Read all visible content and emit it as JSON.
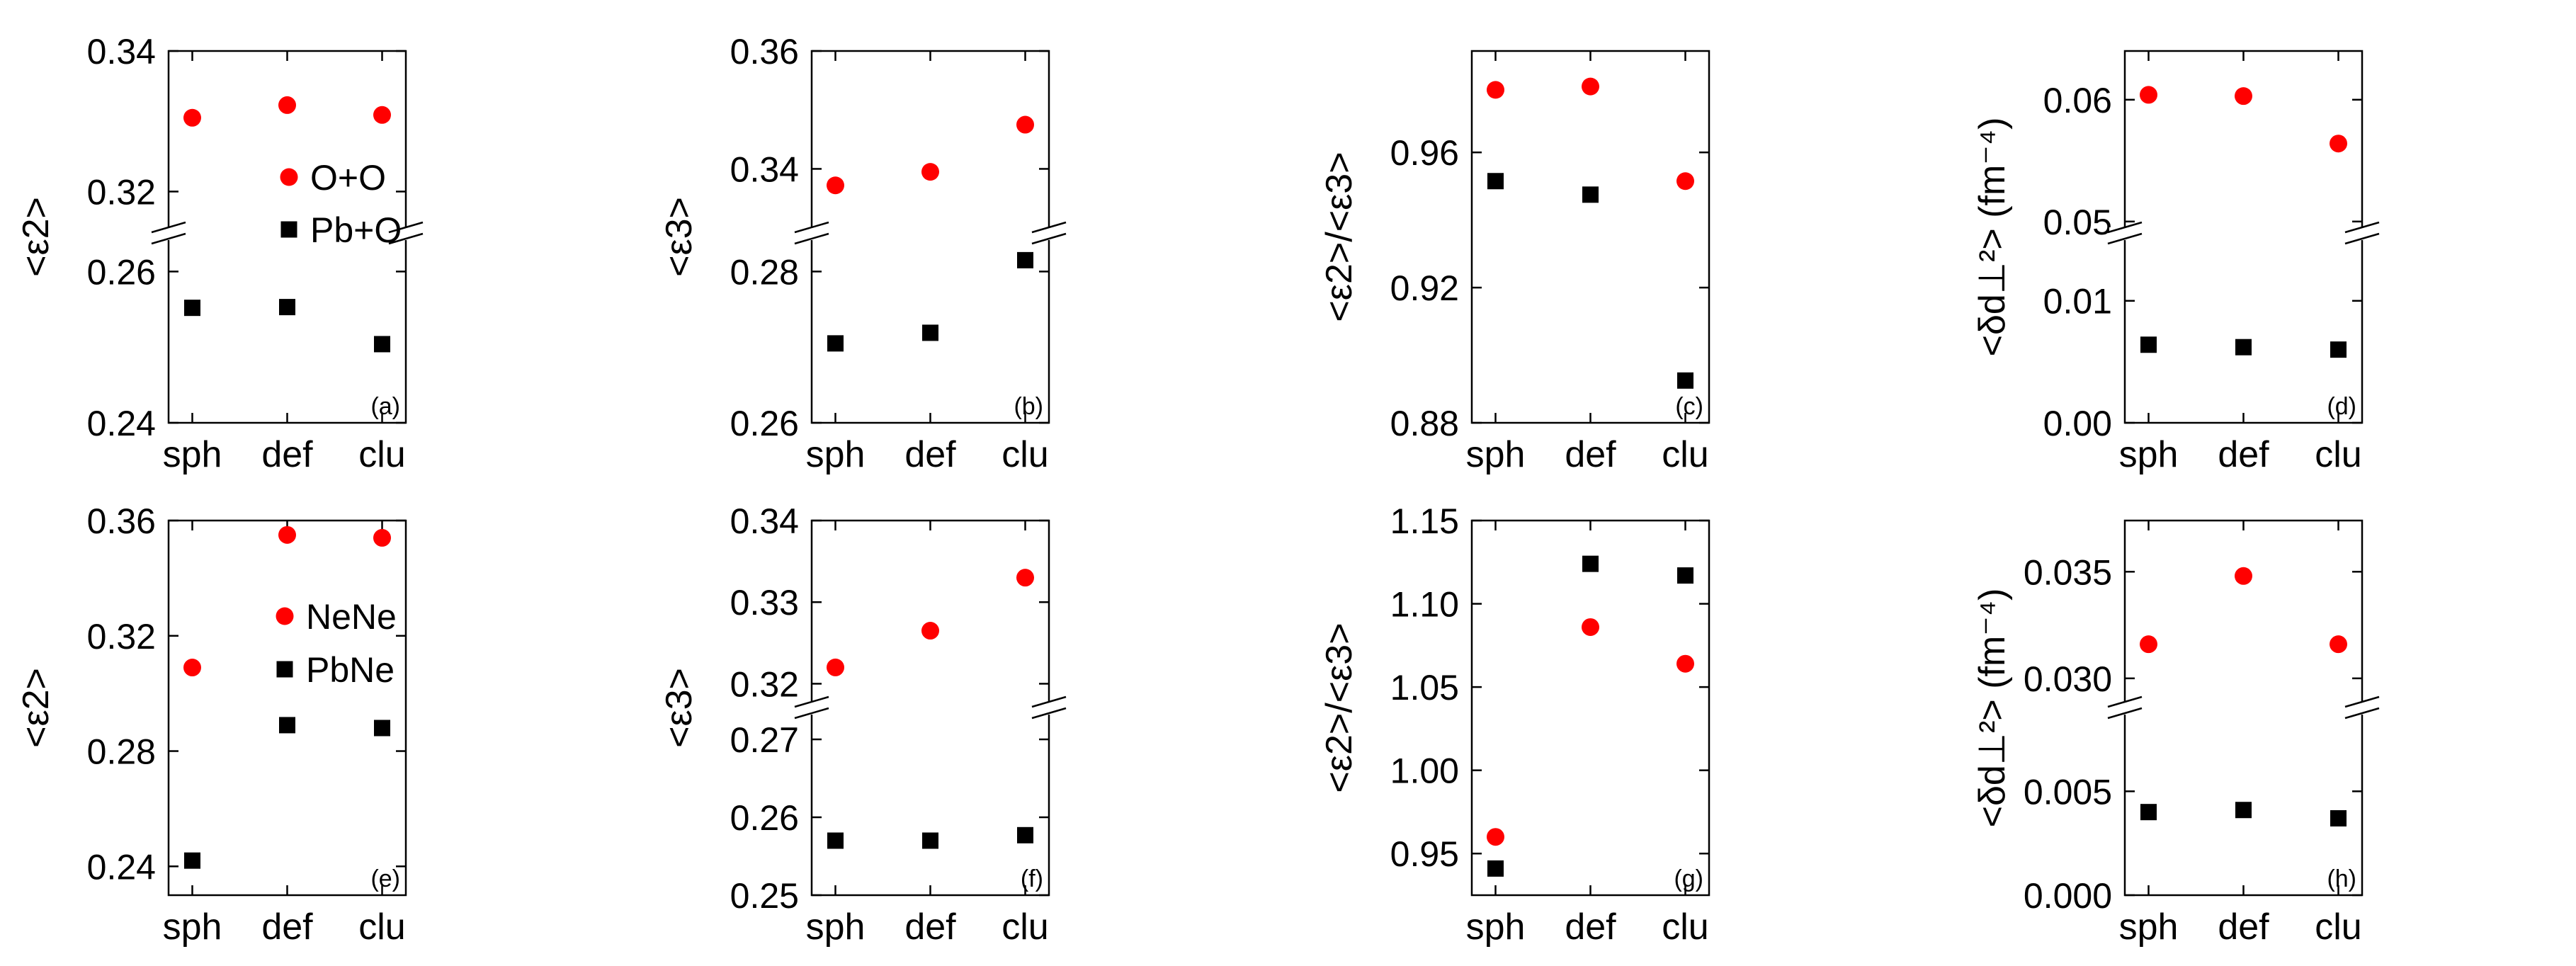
{
  "chart_data": [
    {
      "type": "scatter",
      "broken_axis": true,
      "panel_label": "(a)",
      "ylabel": "<ε2>",
      "categories": [
        "sph",
        "def",
        "clu"
      ],
      "lower_ylim": [
        0.24,
        0.265
      ],
      "upper_ylim": [
        0.314,
        0.34
      ],
      "lower_ticks": [
        "0.24",
        "0.26"
      ],
      "upper_ticks": [
        "0.32",
        "0.34"
      ],
      "legend": {
        "placement": "middle",
        "entries": [
          "O+O",
          "Pb+O"
        ]
      },
      "series": [
        {
          "name": "O+O",
          "marker": "circle",
          "color": "#ff0000",
          "values": [
            0.3305,
            0.3323,
            0.3309
          ]
        },
        {
          "name": "Pb+O",
          "marker": "square",
          "color": "#000000",
          "values": [
            0.2552,
            0.2553,
            0.2504
          ]
        }
      ]
    },
    {
      "type": "scatter",
      "broken_axis": true,
      "panel_label": "(b)",
      "ylabel": "<ε3>",
      "categories": [
        "sph",
        "def",
        "clu"
      ],
      "lower_ylim": [
        0.26,
        0.285
      ],
      "upper_ylim": [
        0.329,
        0.36
      ],
      "lower_ticks": [
        "0.26",
        "0.28"
      ],
      "upper_ticks": [
        "0.34",
        "0.36"
      ],
      "series": [
        {
          "name": "O+O",
          "marker": "circle",
          "color": "#ff0000",
          "values": [
            0.3372,
            0.3395,
            0.3475
          ]
        },
        {
          "name": "Pb+O",
          "marker": "square",
          "color": "#000000",
          "values": [
            0.2705,
            0.2719,
            0.2815
          ]
        }
      ]
    },
    {
      "type": "scatter",
      "broken_axis": false,
      "panel_label": "(c)",
      "ylabel": "<ε2>/<ε3>",
      "categories": [
        "sph",
        "def",
        "clu"
      ],
      "ylim": [
        0.88,
        0.99
      ],
      "ticks": [
        "0.88",
        "0.92",
        "0.96"
      ],
      "series": [
        {
          "name": "O+O",
          "marker": "circle",
          "color": "#ff0000",
          "values": [
            0.9785,
            0.9795,
            0.9515
          ]
        },
        {
          "name": "Pb+O",
          "marker": "square",
          "color": "#000000",
          "values": [
            0.9515,
            0.9475,
            0.8925
          ]
        }
      ]
    },
    {
      "type": "scatter",
      "broken_axis": true,
      "panel_label": "(d)",
      "ylabel": "<δd⊥²> (fm⁻⁴)",
      "categories": [
        "sph",
        "def",
        "clu"
      ],
      "lower_ylim": [
        0.0,
        0.0155
      ],
      "upper_ylim": [
        0.049,
        0.064
      ],
      "lower_ticks": [
        "0.00",
        "0.01"
      ],
      "upper_ticks": [
        "0.05",
        "0.06"
      ],
      "series": [
        {
          "name": "O+O",
          "marker": "circle",
          "color": "#ff0000",
          "values": [
            0.0604,
            0.0603,
            0.0564
          ]
        },
        {
          "name": "Pb+O",
          "marker": "square",
          "color": "#000000",
          "values": [
            0.0064,
            0.0062,
            0.006
          ]
        }
      ]
    },
    {
      "type": "scatter",
      "broken_axis": false,
      "panel_label": "(e)",
      "ylabel": "<ε2>",
      "categories": [
        "sph",
        "def",
        "clu"
      ],
      "ylim": [
        0.23,
        0.36
      ],
      "ticks": [
        "0.24",
        "0.28",
        "0.32",
        "0.36"
      ],
      "legend": {
        "placement": "top-left",
        "entries": [
          "NeNe",
          "PbNe"
        ]
      },
      "series": [
        {
          "name": "NeNe",
          "marker": "circle",
          "color": "#ff0000",
          "values": [
            0.309,
            0.355,
            0.354
          ]
        },
        {
          "name": "PbNe",
          "marker": "square",
          "color": "#000000",
          "values": [
            0.242,
            0.289,
            0.288
          ]
        }
      ]
    },
    {
      "type": "scatter",
      "broken_axis": true,
      "panel_label": "(f)",
      "ylabel": "<ε3>",
      "categories": [
        "sph",
        "def",
        "clu"
      ],
      "lower_ylim": [
        0.25,
        0.274
      ],
      "upper_ylim": [
        0.317,
        0.34
      ],
      "lower_ticks": [
        "0.25",
        "0.26",
        "0.27"
      ],
      "upper_ticks": [
        "0.32",
        "0.33",
        "0.34"
      ],
      "series": [
        {
          "name": "NeNe",
          "marker": "circle",
          "color": "#ff0000",
          "values": [
            0.322,
            0.3265,
            0.333
          ]
        },
        {
          "name": "PbNe",
          "marker": "square",
          "color": "#000000",
          "values": [
            0.257,
            0.257,
            0.2577
          ]
        }
      ]
    },
    {
      "type": "scatter",
      "broken_axis": false,
      "panel_label": "(g)",
      "ylabel": "<ε2>/<ε3>",
      "categories": [
        "sph",
        "def",
        "clu"
      ],
      "ylim": [
        0.925,
        1.15
      ],
      "ticks": [
        "0.95",
        "1.00",
        "1.05",
        "1.10",
        "1.15"
      ],
      "series": [
        {
          "name": "NeNe",
          "marker": "circle",
          "color": "#ff0000",
          "values": [
            0.96,
            1.086,
            1.064
          ]
        },
        {
          "name": "PbNe",
          "marker": "square",
          "color": "#000000",
          "values": [
            0.941,
            1.124,
            1.117
          ]
        }
      ]
    },
    {
      "type": "scatter",
      "broken_axis": true,
      "panel_label": "(h)",
      "ylabel": "<δd⊥²> (fm⁻⁴)",
      "categories": [
        "sph",
        "def",
        "clu"
      ],
      "lower_ylim": [
        0.0,
        0.009
      ],
      "upper_ylim": [
        0.0286,
        0.0374
      ],
      "lower_ticks": [
        "0.000",
        "0.005"
      ],
      "upper_ticks": [
        "0.030",
        "0.035"
      ],
      "series": [
        {
          "name": "NeNe",
          "marker": "circle",
          "color": "#ff0000",
          "values": [
            0.0316,
            0.0348,
            0.0316
          ]
        },
        {
          "name": "PbNe",
          "marker": "square",
          "color": "#000000",
          "values": [
            0.004,
            0.0041,
            0.0037
          ]
        }
      ]
    }
  ]
}
